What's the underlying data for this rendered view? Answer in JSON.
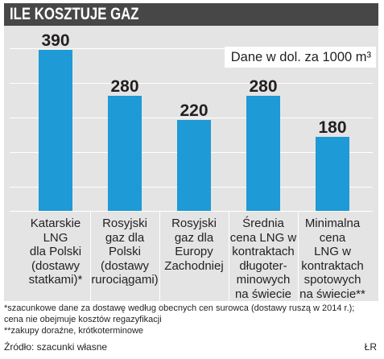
{
  "chart_data": {
    "type": "bar",
    "title": "ILE KOSZTUJE GAZ",
    "unit_note": "Dane w dol. za 1000 m³",
    "categories": [
      "Katarskie\nLNG\ndla Polski\n(dostawy\nstatkami)*",
      "Rosyjski\ngaz dla\nPolski\n(dostawy\nrurociągami)",
      "Rosyjski\ngaz dla\nEuropy\nZachodniej",
      "Średnia\ncena LNG w\nkontraktach\ndługoter-\nminowych\nna świecie",
      "Minimalna\ncena\nLNG w\nkontraktach\nspotowych\nna świecie**"
    ],
    "values": [
      390,
      280,
      220,
      280,
      180
    ],
    "grid": true
  },
  "footnotes": [
    "*szacunkowe dane za dostawę według obecnych cen surowca (dostawy ruszą w 2014 r.);",
    "cena nie obejmuje kosztów regazyfikacji",
    "**zakupy doraźne, krótkoterminowe"
  ],
  "source": "Źródło: szacunki własne",
  "author": "ŁR",
  "colors": {
    "title_bar": "#474747",
    "panel": "#e4e4e4",
    "bar": "#1e9ad6",
    "gridline": "#ffffff",
    "text": "#231f20"
  }
}
